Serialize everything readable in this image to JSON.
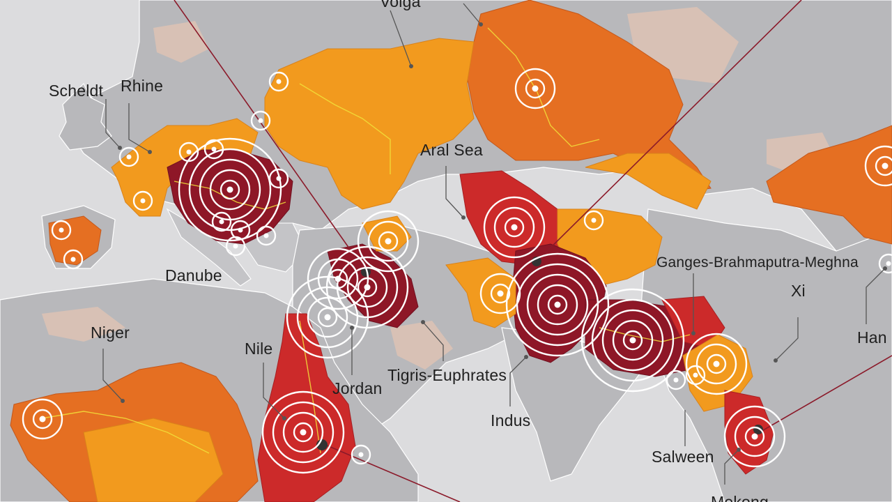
{
  "map": {
    "colors": {
      "sea": "#dcdcde",
      "land": "#b8b8bb",
      "low_stress": "#f29a1e",
      "medium_stress": "#e56f22",
      "high_stress": "#cc2a2a",
      "extreme_stress": "#8e1727",
      "rivers": "#f2e23a",
      "rings": "#ffffff",
      "pointer_lines": "#8b1a2a"
    },
    "basins": [
      {
        "id": "volga",
        "label": "Volga"
      },
      {
        "id": "scheldt",
        "label": "Scheldt"
      },
      {
        "id": "rhine",
        "label": "Rhine"
      },
      {
        "id": "danube",
        "label": "Danube"
      },
      {
        "id": "aral",
        "label": "Aral Sea"
      },
      {
        "id": "ganges",
        "label": "Ganges-Brahmaputra-Meghna"
      },
      {
        "id": "xi",
        "label": "Xi"
      },
      {
        "id": "han",
        "label": "Han"
      },
      {
        "id": "niger",
        "label": "Niger"
      },
      {
        "id": "nile",
        "label": "Nile"
      },
      {
        "id": "jordan",
        "label": "Jordan"
      },
      {
        "id": "tigris",
        "label": "Tigris-Euphrates"
      },
      {
        "id": "indus",
        "label": "Indus"
      },
      {
        "id": "salween",
        "label": "Salween"
      },
      {
        "id": "mekong",
        "label": "Mekong"
      }
    ]
  }
}
